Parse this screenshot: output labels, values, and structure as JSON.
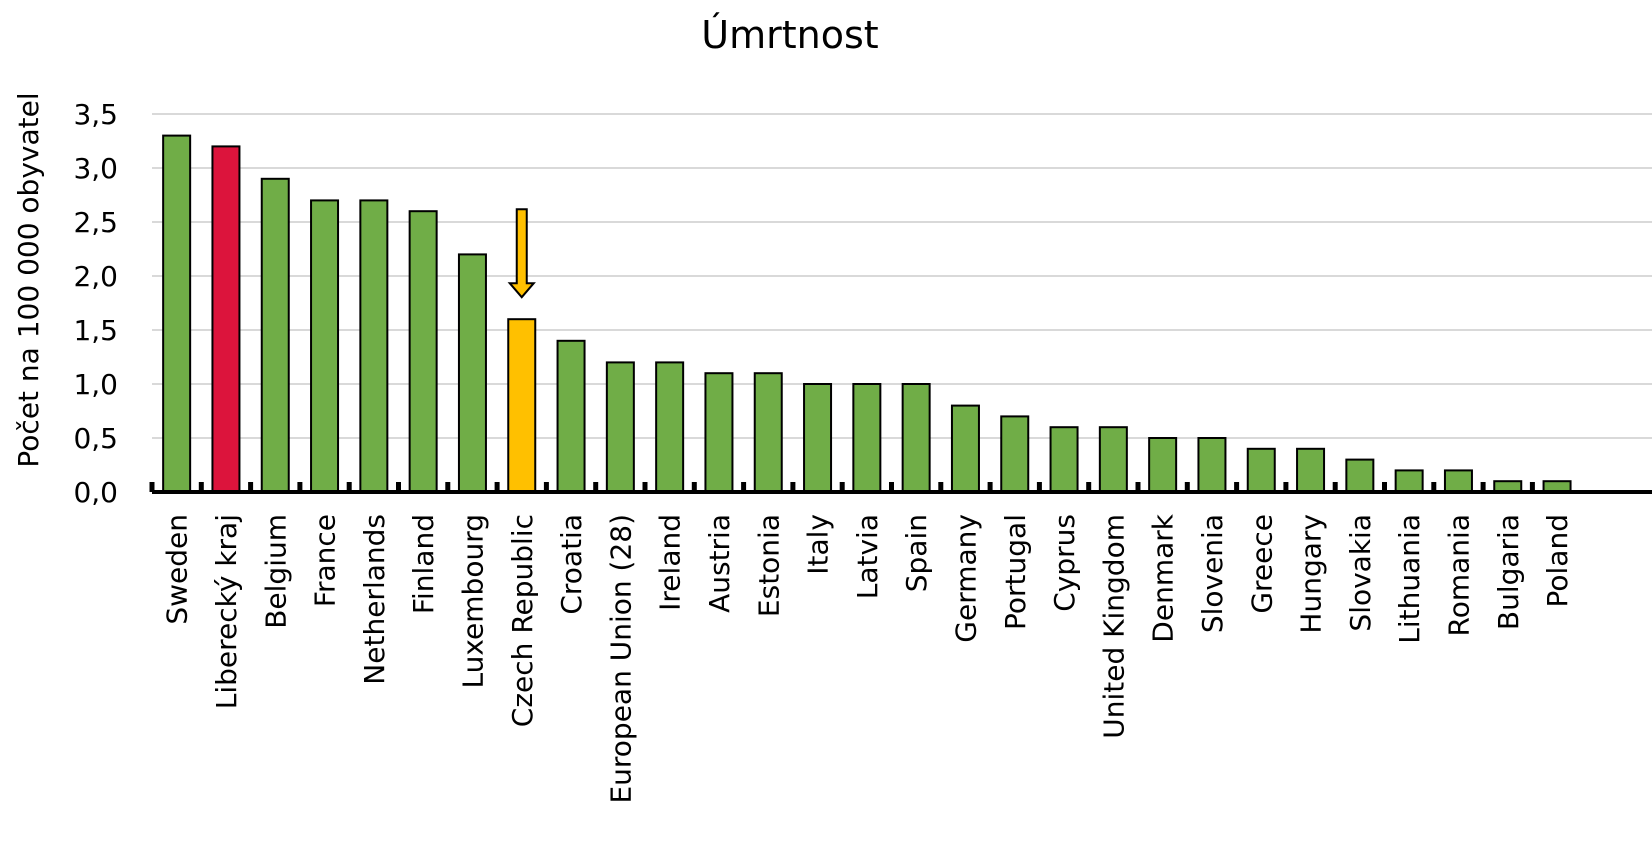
{
  "chart_data": {
    "type": "bar",
    "title": "Úmrtnost",
    "ylabel": "Počet na 100 000 obyvatel",
    "xlabel": "",
    "ylim": [
      0,
      3.5
    ],
    "yticks": [
      "0,0",
      "0,5",
      "1,0",
      "1,5",
      "2,0",
      "2,5",
      "3,0",
      "3,5"
    ],
    "grid": true,
    "categories": [
      "Sweden",
      "Liberecký kraj",
      "Belgium",
      "France",
      "Netherlands",
      "Finland",
      "Luxembourg",
      "Czech Republic",
      "Croatia",
      "European Union (28)",
      "Ireland",
      "Austria",
      "Estonia",
      "Italy",
      "Latvia",
      "Spain",
      "Germany",
      "Portugal",
      "Cyprus",
      "United Kingdom",
      "Denmark",
      "Slovenia",
      "Greece",
      "Hungary",
      "Slovakia",
      "Lithuania",
      "Romania",
      "Bulgaria",
      "Poland"
    ],
    "values": [
      3.3,
      3.2,
      2.9,
      2.7,
      2.7,
      2.6,
      2.2,
      1.6,
      1.4,
      1.2,
      1.2,
      1.1,
      1.1,
      1.0,
      1.0,
      1.0,
      0.8,
      0.7,
      0.6,
      0.6,
      0.5,
      0.5,
      0.4,
      0.4,
      0.3,
      0.2,
      0.2,
      0.1,
      0.1
    ],
    "colors": {
      "default": "#70ad47",
      "Liberecký kraj": "#dc143c",
      "Czech Republic": "#ffc000"
    },
    "annotations": [
      {
        "type": "arrow-down",
        "target": "Czech Republic",
        "color": "#ffc000"
      }
    ]
  }
}
